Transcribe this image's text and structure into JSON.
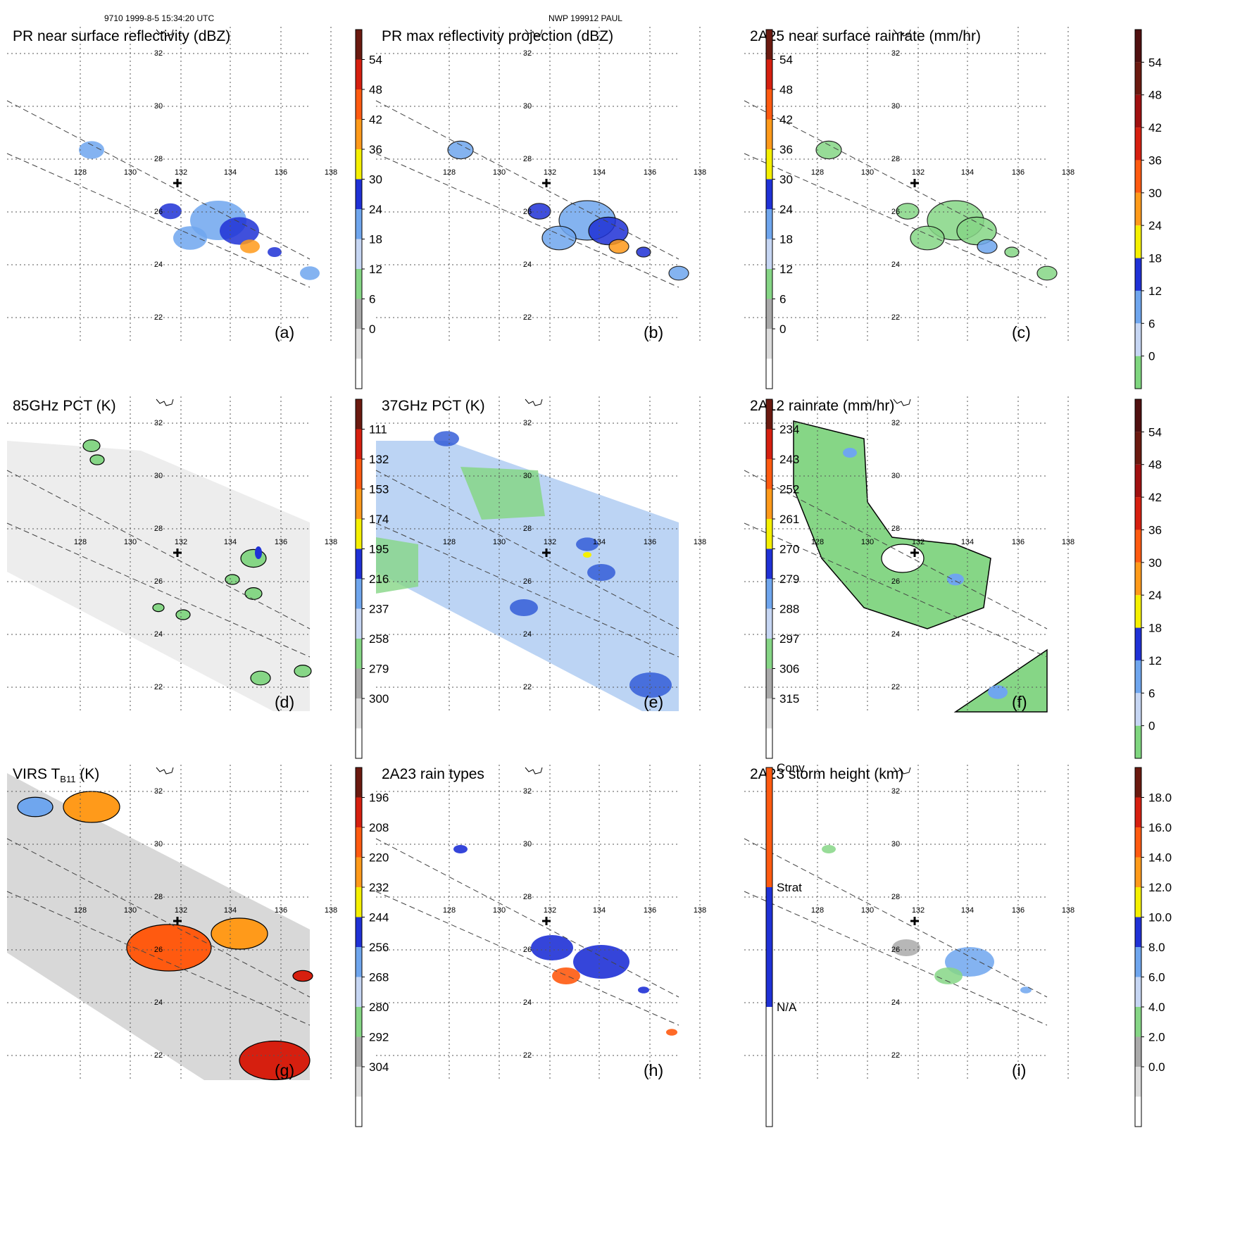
{
  "header": {
    "left": "9710 1999-8-5 15:34:20 UTC",
    "center": "NWP 199912 PAUL"
  },
  "map": {
    "lon_ticks": [
      "128",
      "130",
      "132",
      "134",
      "136",
      "138"
    ],
    "lat_ticks": [
      "32",
      "30",
      "28",
      "26",
      "24",
      "22"
    ]
  },
  "colorbars": {
    "dbz": [
      "54",
      "48",
      "42",
      "36",
      "30",
      "24",
      "18",
      "12",
      "6",
      "0"
    ],
    "rain": [
      "54",
      "48",
      "42",
      "36",
      "30",
      "24",
      "18",
      "12",
      "6",
      "0"
    ],
    "pct85": [
      "111",
      "132",
      "153",
      "174",
      "195",
      "216",
      "237",
      "258",
      "279",
      "300"
    ],
    "pct37": [
      "234",
      "243",
      "252",
      "261",
      "270",
      "279",
      "288",
      "297",
      "306",
      "315"
    ],
    "virs": [
      "196",
      "208",
      "220",
      "232",
      "244",
      "256",
      "268",
      "280",
      "292",
      "304"
    ],
    "height": [
      "18.0",
      "16.0",
      "14.0",
      "12.0",
      "10.0",
      "8.0",
      "6.0",
      "4.0",
      "2.0",
      "0.0"
    ],
    "raintype": [
      "Conv",
      "Strat",
      "N/A"
    ]
  },
  "panels": [
    {
      "title": "PR near surface reflectivity (dBZ)",
      "label": "(a)"
    },
    {
      "title": "PR max reflectivity projection (dBZ)",
      "label": "(b)"
    },
    {
      "title": "2A25 near surface rainrate (mm/hr)",
      "label": "(c)"
    },
    {
      "title_pre": "85GHz",
      "title_sub": "",
      "title": "85GHz PCT (K)",
      "label": "(d)"
    },
    {
      "title": "37GHz PCT (K)",
      "label": "(e)"
    },
    {
      "title": "2A12 rainrate (mm/hr)",
      "label": "(f)"
    },
    {
      "title": "VIRS T",
      "title_sub": "B11",
      "title_post": " (K)",
      "label": "(g)"
    },
    {
      "title": "2A23 rain types",
      "label": "(h)"
    },
    {
      "title": "2A23 storm height (km)",
      "label": "(i)"
    }
  ]
}
